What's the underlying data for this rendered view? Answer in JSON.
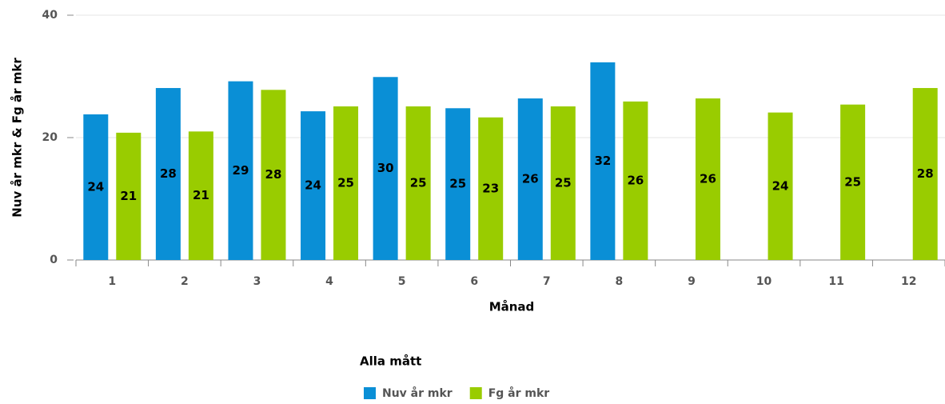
{
  "chart_data": {
    "type": "bar",
    "x_label": "Månad",
    "y_label": "Nuv år mkr & Fg år mkr",
    "legend_title": "Alla mått",
    "categories": [
      "1",
      "2",
      "3",
      "4",
      "5",
      "6",
      "7",
      "8",
      "9",
      "10",
      "11",
      "12"
    ],
    "series": [
      {
        "name": "Nuv år mkr",
        "color": "#0a8fd6",
        "values": [
          23.8,
          28.1,
          29.2,
          24.3,
          29.9,
          24.8,
          26.4,
          32.3,
          null,
          null,
          null,
          null
        ],
        "value_labels": [
          "24",
          "28",
          "29",
          "24",
          "30",
          "25",
          "26",
          "32",
          null,
          null,
          null,
          null
        ]
      },
      {
        "name": "Fg år mkr",
        "color": "#99cc00",
        "values": [
          20.8,
          21.0,
          27.8,
          25.1,
          25.1,
          23.3,
          25.1,
          25.9,
          26.4,
          24.1,
          25.4,
          28.1
        ],
        "value_labels": [
          "21",
          "21",
          "28",
          "25",
          "25",
          "23",
          "25",
          "26",
          "26",
          "24",
          "25",
          "28"
        ]
      }
    ],
    "ylim": [
      0,
      40
    ],
    "yticks": [
      0,
      20,
      40
    ],
    "grid": true
  }
}
